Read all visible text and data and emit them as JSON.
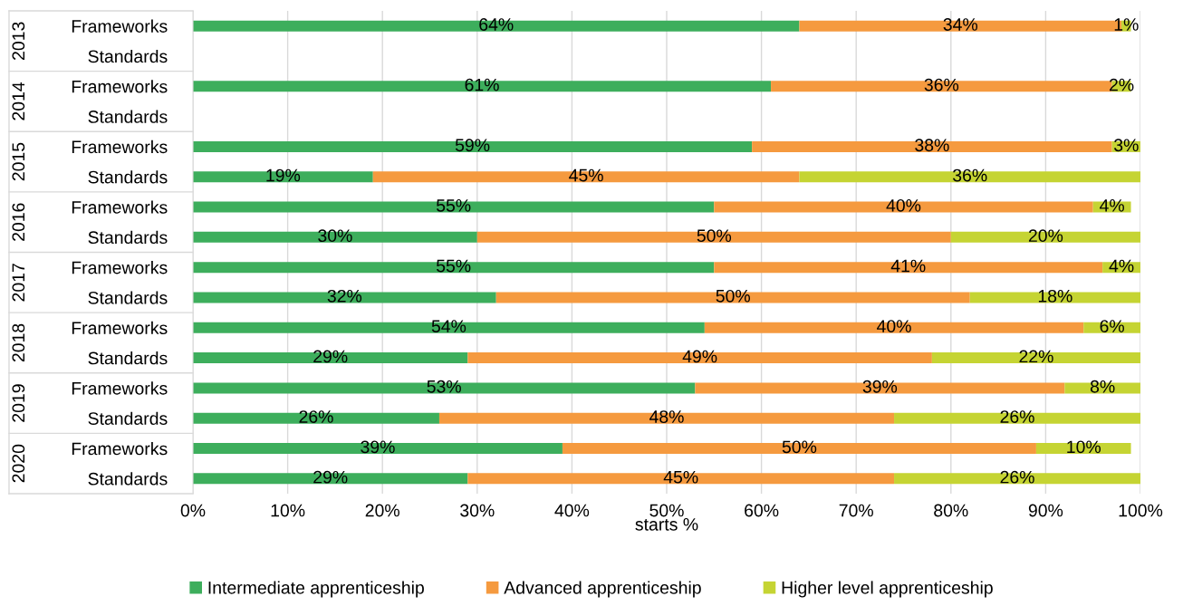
{
  "chart_data": {
    "type": "bar",
    "orientation": "horizontal",
    "stacked": true,
    "categories": [
      "Frameworks",
      "Standards",
      "Frameworks",
      "Standards",
      "Frameworks",
      "Standards",
      "Frameworks",
      "Standards",
      "Frameworks",
      "Standards",
      "Frameworks",
      "Standards",
      "Frameworks",
      "Standards",
      "Frameworks",
      "Standards"
    ],
    "annotations": [
      "2013",
      "2014",
      "2015",
      "2016",
      "2017",
      "2018",
      "2019",
      "2020"
    ],
    "series": [
      {
        "name": "Intermediate apprenticeship",
        "color": "#3dae5c",
        "values": [
          64,
          null,
          61,
          null,
          59,
          19,
          55,
          30,
          55,
          32,
          54,
          29,
          53,
          26,
          39,
          29
        ],
        "value_labels": [
          "64%",
          null,
          "61%",
          null,
          "59%",
          "19%",
          "55%",
          "30%",
          "55%",
          "32%",
          "54%",
          "29%",
          "53%",
          "26%",
          "39%",
          "29%"
        ]
      },
      {
        "name": "Advanced apprenticeship",
        "color": "#f59a3f",
        "values": [
          34,
          null,
          36,
          null,
          38,
          45,
          40,
          50,
          41,
          50,
          40,
          49,
          39,
          48,
          50,
          45
        ],
        "value_labels": [
          "34%",
          null,
          "36%",
          null,
          "38%",
          "45%",
          "40%",
          "50%",
          "41%",
          "50%",
          "40%",
          "49%",
          "39%",
          "48%",
          "50%",
          "45%"
        ]
      },
      {
        "name": "Higher level apprenticeship",
        "color": "#c5d433",
        "values": [
          1,
          null,
          2,
          null,
          3,
          36,
          4,
          20,
          4,
          18,
          6,
          22,
          8,
          26,
          10,
          26
        ],
        "value_labels": [
          "1%",
          null,
          "2%",
          null,
          "3%",
          "36%",
          "4%",
          "20%",
          "4%",
          "18%",
          "6%",
          "22%",
          "8%",
          "26%",
          "10%",
          "26%"
        ]
      }
    ],
    "xlabel": "starts %",
    "xlim": [
      0,
      100
    ],
    "xticks": [
      {
        "value": 0,
        "label": "0%"
      },
      {
        "value": 10,
        "label": "10%"
      },
      {
        "value": 20,
        "label": "20%"
      },
      {
        "value": 30,
        "label": "30%"
      },
      {
        "value": 40,
        "label": "40%"
      },
      {
        "value": 50,
        "label": "50%"
      },
      {
        "value": 60,
        "label": "60%"
      },
      {
        "value": 70,
        "label": "70%"
      },
      {
        "value": 80,
        "label": "80%"
      },
      {
        "value": 90,
        "label": "90%"
      },
      {
        "value": 100,
        "label": "100%"
      }
    ],
    "grid": "x",
    "legend": "bottom"
  }
}
